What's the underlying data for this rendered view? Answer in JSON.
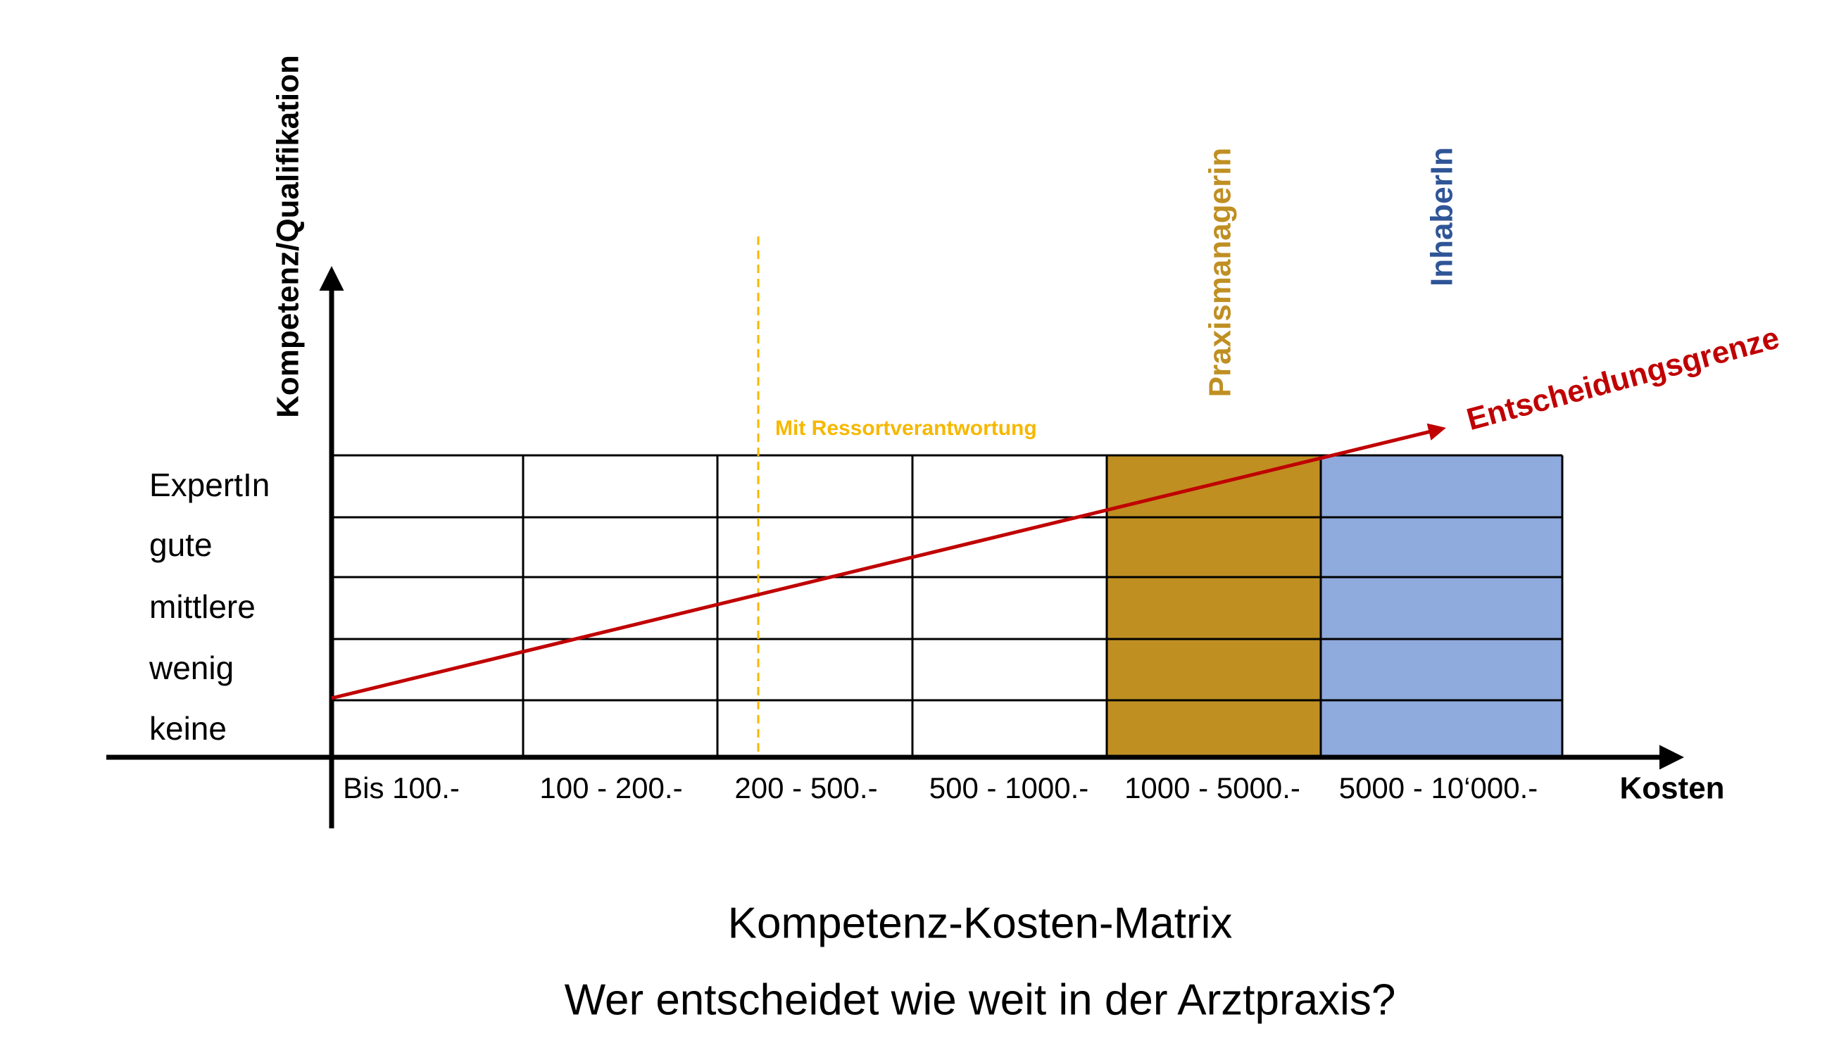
{
  "axes": {
    "y_label": "Kompetenz/Qualifikation",
    "x_label": "Kosten"
  },
  "rows": [
    "ExpertIn",
    "gute",
    "mittlere",
    "wenig",
    "keine"
  ],
  "columns": [
    "Bis 100.-",
    "100 - 200.-",
    "200 - 500.-",
    "500 - 1000.-",
    "1000 - 5000.-",
    "5000 - 10‘000.-"
  ],
  "annotations": {
    "ressort": "Mit Ressortverantwortung",
    "praxismanagerin": "Praxismanagerin",
    "inhaber": "InhaberIn",
    "grenze": "Entscheidungsgrenze"
  },
  "title": "Kompetenz-Kosten-Matrix",
  "subtitle": "Wer entscheidet wie weit in der Arztpraxis?"
}
